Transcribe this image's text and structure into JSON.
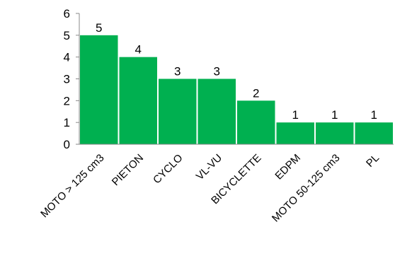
{
  "chart_data": {
    "type": "bar",
    "categories": [
      "MOTO > 125 cm3",
      "PIETON",
      "CYCLO",
      "VL-VU",
      "BICYCLETTE",
      "EDPM",
      "MOTO 50-125 cm3",
      "PL"
    ],
    "values": [
      5,
      4,
      3,
      3,
      2,
      1,
      1,
      1
    ],
    "data_labels": [
      "5",
      "4",
      "3",
      "3",
      "2",
      "1",
      "1",
      "1"
    ],
    "y_ticks": [
      0,
      1,
      2,
      3,
      4,
      5,
      6
    ],
    "ylim": [
      0,
      6
    ],
    "title": "",
    "xlabel": "",
    "ylabel": "",
    "grid": false,
    "legend": "none",
    "bar_color": "#00B050",
    "axis_color": "#888888"
  }
}
